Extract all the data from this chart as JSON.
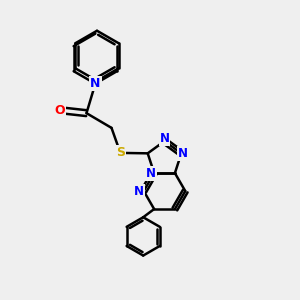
{
  "bg_color": "#efefef",
  "bond_color": "#000000",
  "N_color": "#0000ff",
  "O_color": "#ff0000",
  "S_color": "#ccaa00",
  "line_width": 1.8,
  "figsize": [
    3.0,
    3.0
  ],
  "dpi": 100,
  "xlim": [
    0,
    8
  ],
  "ylim": [
    -6,
    4
  ]
}
